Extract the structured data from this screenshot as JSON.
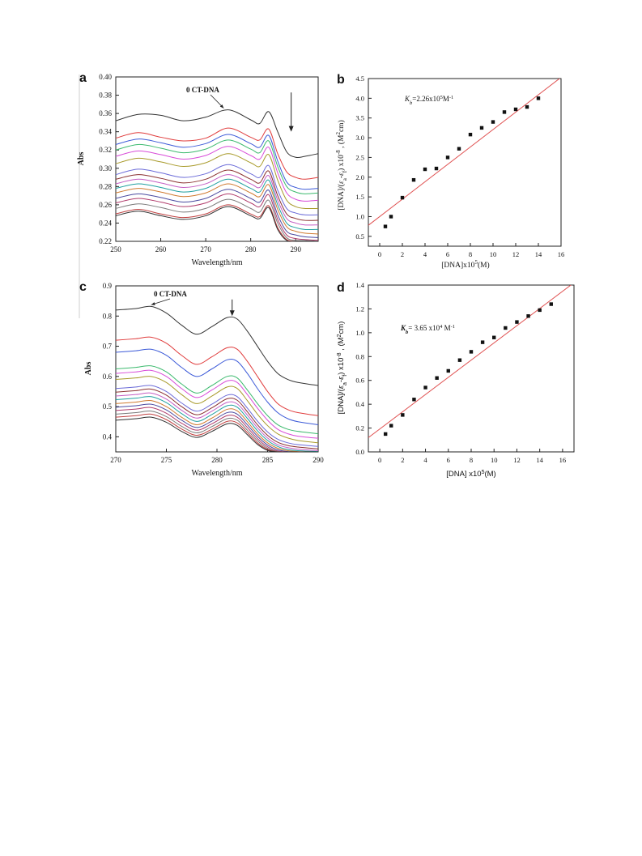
{
  "chart_data": [
    {
      "panel": "a",
      "type": "line",
      "xlabel": "Wavelength/nm",
      "ylabel": "Abs",
      "xlim": [
        250,
        295
      ],
      "ylim": [
        0.22,
        0.4
      ],
      "xticks": [
        250,
        260,
        270,
        280,
        290
      ],
      "yticks": [
        0.22,
        0.24,
        0.26,
        0.28,
        0.3,
        0.32,
        0.34,
        0.36,
        0.38,
        0.4
      ],
      "annotation": "0 CT-DNA",
      "annotation_point": [
        274,
        0.364
      ],
      "arrow_x": 289,
      "arrow_y": [
        0.383,
        0.34
      ],
      "grid": false,
      "x": [
        250,
        255,
        260,
        265,
        270,
        275,
        280,
        282,
        284,
        286,
        288,
        290,
        292,
        295
      ],
      "series": [
        {
          "color": "#333333",
          "values": [
            0.352,
            0.359,
            0.358,
            0.352,
            0.356,
            0.364,
            0.353,
            0.349,
            0.362,
            0.34,
            0.318,
            0.312,
            0.313,
            0.316
          ]
        },
        {
          "color": "#e03c3c",
          "values": [
            0.333,
            0.339,
            0.334,
            0.33,
            0.333,
            0.344,
            0.334,
            0.331,
            0.343,
            0.316,
            0.296,
            0.29,
            0.288,
            0.29
          ]
        },
        {
          "color": "#3c5ad8",
          "values": [
            0.326,
            0.332,
            0.328,
            0.323,
            0.327,
            0.337,
            0.327,
            0.323,
            0.336,
            0.308,
            0.285,
            0.279,
            0.277,
            0.278
          ]
        },
        {
          "color": "#3cba6e",
          "values": [
            0.32,
            0.326,
            0.322,
            0.317,
            0.321,
            0.331,
            0.321,
            0.317,
            0.33,
            0.302,
            0.28,
            0.274,
            0.272,
            0.273
          ]
        },
        {
          "color": "#d84bd8",
          "values": [
            0.313,
            0.319,
            0.315,
            0.31,
            0.314,
            0.324,
            0.314,
            0.31,
            0.323,
            0.295,
            0.273,
            0.266,
            0.264,
            0.265
          ]
        },
        {
          "color": "#a89a2a",
          "values": [
            0.305,
            0.311,
            0.307,
            0.302,
            0.306,
            0.316,
            0.306,
            0.302,
            0.315,
            0.287,
            0.265,
            0.258,
            0.256,
            0.256
          ]
        },
        {
          "color": "#6b6bd8",
          "values": [
            0.293,
            0.299,
            0.295,
            0.29,
            0.294,
            0.304,
            0.294,
            0.29,
            0.303,
            0.276,
            0.256,
            0.251,
            0.249,
            0.249
          ]
        },
        {
          "color": "#8a3030",
          "values": [
            0.288,
            0.293,
            0.289,
            0.284,
            0.288,
            0.298,
            0.288,
            0.284,
            0.297,
            0.27,
            0.25,
            0.245,
            0.243,
            0.243
          ]
        },
        {
          "color": "#c45ec4",
          "values": [
            0.283,
            0.288,
            0.284,
            0.279,
            0.283,
            0.293,
            0.283,
            0.279,
            0.292,
            0.265,
            0.245,
            0.24,
            0.238,
            0.238
          ]
        },
        {
          "color": "#20a0a0",
          "values": [
            0.278,
            0.283,
            0.279,
            0.274,
            0.278,
            0.288,
            0.278,
            0.274,
            0.287,
            0.26,
            0.24,
            0.235,
            0.233,
            0.233
          ]
        },
        {
          "color": "#d07a30",
          "values": [
            0.273,
            0.278,
            0.274,
            0.269,
            0.273,
            0.283,
            0.273,
            0.269,
            0.282,
            0.255,
            0.236,
            0.231,
            0.229,
            0.228
          ]
        },
        {
          "color": "#4a4aa0",
          "values": [
            0.267,
            0.272,
            0.268,
            0.263,
            0.267,
            0.277,
            0.267,
            0.263,
            0.276,
            0.249,
            0.231,
            0.227,
            0.225,
            0.224
          ]
        },
        {
          "color": "#b03a6a",
          "values": [
            0.262,
            0.267,
            0.263,
            0.258,
            0.262,
            0.272,
            0.262,
            0.258,
            0.271,
            0.244,
            0.227,
            0.223,
            0.222,
            0.221
          ]
        },
        {
          "color": "#7a7a7a",
          "values": [
            0.256,
            0.261,
            0.257,
            0.252,
            0.256,
            0.266,
            0.256,
            0.252,
            0.265,
            0.24,
            0.224,
            0.221,
            0.221,
            0.22
          ]
        },
        {
          "color": "#c04040",
          "values": [
            0.25,
            0.255,
            0.25,
            0.246,
            0.25,
            0.26,
            0.25,
            0.247,
            0.259,
            0.235,
            0.222,
            0.22,
            0.22,
            0.22
          ]
        },
        {
          "color": "#303030",
          "values": [
            0.248,
            0.253,
            0.248,
            0.244,
            0.248,
            0.258,
            0.248,
            0.245,
            0.257,
            0.233,
            0.221,
            0.22,
            0.22,
            0.22
          ]
        }
      ]
    },
    {
      "panel": "b",
      "type": "scatter",
      "xlabel": "[DNA]x10⁵(M)",
      "ylabel": "[DNA]/(εa-εf) x10⁻⁸ , (M²cm)",
      "xlim": [
        -1,
        16
      ],
      "ylim": [
        0.25,
        4.5
      ],
      "xticks": [
        0,
        2,
        4,
        6,
        8,
        10,
        12,
        14,
        16
      ],
      "yticks": [
        0.5,
        1.0,
        1.5,
        2.0,
        2.5,
        3.0,
        3.5,
        4.0,
        4.5
      ],
      "annotation": "Kb=2.26x10⁵M⁻¹",
      "grid": false,
      "points_x": [
        0.5,
        1,
        2,
        3,
        4,
        5,
        6,
        7,
        8,
        9,
        10,
        11,
        12,
        13,
        14
      ],
      "points_y": [
        0.75,
        1.0,
        1.48,
        1.93,
        2.2,
        2.22,
        2.5,
        2.72,
        3.08,
        3.25,
        3.4,
        3.65,
        3.72,
        3.78,
        4.0
      ],
      "fit_x": [
        -1,
        16
      ],
      "fit_y": [
        0.78,
        4.53
      ]
    },
    {
      "panel": "c",
      "type": "line",
      "xlabel": "Wavelength/nm",
      "ylabel": "Abs",
      "xlim": [
        270,
        290
      ],
      "ylim": [
        0.35,
        0.9
      ],
      "xticks": [
        270,
        275,
        280,
        285,
        290
      ],
      "yticks": [
        0.4,
        0.5,
        0.6,
        0.7,
        0.8,
        0.9
      ],
      "annotation": "0 CT-DNA",
      "annotation_point": [
        273.5,
        0.832
      ],
      "arrow_x": 281.5,
      "arrow_y": [
        0.855,
        0.8
      ],
      "grid": false,
      "x": [
        270,
        272,
        273.5,
        275,
        276.5,
        278,
        279.5,
        281,
        282,
        283,
        284,
        285,
        286,
        287,
        288,
        290
      ],
      "series": [
        {
          "color": "#333333",
          "values": [
            0.82,
            0.825,
            0.832,
            0.81,
            0.77,
            0.74,
            0.765,
            0.795,
            0.79,
            0.75,
            0.7,
            0.65,
            0.61,
            0.59,
            0.58,
            0.57
          ]
        },
        {
          "color": "#e03c3c",
          "values": [
            0.72,
            0.725,
            0.73,
            0.71,
            0.67,
            0.64,
            0.665,
            0.695,
            0.69,
            0.65,
            0.6,
            0.55,
            0.51,
            0.49,
            0.48,
            0.47
          ]
        },
        {
          "color": "#3c5ad8",
          "values": [
            0.68,
            0.685,
            0.69,
            0.67,
            0.63,
            0.6,
            0.625,
            0.655,
            0.65,
            0.61,
            0.56,
            0.515,
            0.48,
            0.46,
            0.45,
            0.44
          ]
        },
        {
          "color": "#3cba6e",
          "values": [
            0.625,
            0.63,
            0.635,
            0.615,
            0.575,
            0.545,
            0.57,
            0.6,
            0.595,
            0.555,
            0.51,
            0.47,
            0.44,
            0.425,
            0.418,
            0.41
          ]
        },
        {
          "color": "#d84bd8",
          "values": [
            0.61,
            0.615,
            0.62,
            0.6,
            0.56,
            0.53,
            0.555,
            0.585,
            0.58,
            0.54,
            0.495,
            0.455,
            0.425,
            0.41,
            0.402,
            0.395
          ]
        },
        {
          "color": "#a89a2a",
          "values": [
            0.59,
            0.595,
            0.6,
            0.58,
            0.54,
            0.51,
            0.535,
            0.565,
            0.56,
            0.52,
            0.475,
            0.437,
            0.41,
            0.396,
            0.388,
            0.38
          ]
        },
        {
          "color": "#6b6bd8",
          "values": [
            0.56,
            0.565,
            0.57,
            0.55,
            0.512,
            0.485,
            0.508,
            0.538,
            0.533,
            0.495,
            0.452,
            0.416,
            0.392,
            0.38,
            0.374,
            0.368
          ]
        },
        {
          "color": "#8a3030",
          "values": [
            0.548,
            0.553,
            0.558,
            0.538,
            0.5,
            0.473,
            0.496,
            0.526,
            0.521,
            0.483,
            0.44,
            0.405,
            0.382,
            0.371,
            0.366,
            0.36
          ]
        },
        {
          "color": "#c45ec4",
          "values": [
            0.535,
            0.54,
            0.545,
            0.525,
            0.488,
            0.462,
            0.485,
            0.514,
            0.509,
            0.472,
            0.43,
            0.396,
            0.374,
            0.364,
            0.359,
            0.354
          ]
        },
        {
          "color": "#20a0a0",
          "values": [
            0.523,
            0.528,
            0.533,
            0.513,
            0.477,
            0.451,
            0.474,
            0.503,
            0.498,
            0.461,
            0.42,
            0.388,
            0.368,
            0.358,
            0.354,
            0.351
          ]
        },
        {
          "color": "#d07a30",
          "values": [
            0.51,
            0.515,
            0.52,
            0.5,
            0.465,
            0.44,
            0.462,
            0.491,
            0.486,
            0.45,
            0.41,
            0.38,
            0.362,
            0.354,
            0.351,
            0.35
          ]
        },
        {
          "color": "#4a4aa0",
          "values": [
            0.498,
            0.503,
            0.508,
            0.489,
            0.455,
            0.431,
            0.452,
            0.48,
            0.475,
            0.44,
            0.402,
            0.373,
            0.357,
            0.351,
            0.35,
            0.35
          ]
        },
        {
          "color": "#b03a6a",
          "values": [
            0.487,
            0.492,
            0.497,
            0.478,
            0.445,
            0.422,
            0.443,
            0.47,
            0.465,
            0.431,
            0.394,
            0.367,
            0.353,
            0.35,
            0.35,
            0.35
          ]
        },
        {
          "color": "#7a7a7a",
          "values": [
            0.475,
            0.48,
            0.485,
            0.467,
            0.435,
            0.413,
            0.434,
            0.46,
            0.455,
            0.422,
            0.387,
            0.362,
            0.351,
            0.35,
            0.35,
            0.35
          ]
        },
        {
          "color": "#c04040",
          "values": [
            0.465,
            0.47,
            0.475,
            0.457,
            0.426,
            0.405,
            0.425,
            0.451,
            0.446,
            0.414,
            0.38,
            0.358,
            0.35,
            0.35,
            0.35,
            0.35
          ]
        },
        {
          "color": "#303030",
          "values": [
            0.455,
            0.46,
            0.465,
            0.448,
            0.418,
            0.398,
            0.418,
            0.443,
            0.438,
            0.407,
            0.375,
            0.355,
            0.35,
            0.35,
            0.35,
            0.35
          ]
        }
      ]
    },
    {
      "panel": "d",
      "type": "scatter",
      "xlabel": "[DNA] x10⁵(M)",
      "ylabel": "[DNA]/(εa-εf) x10⁻⁸ , (M²cm)",
      "xlim": [
        -1,
        17
      ],
      "ylim": [
        0.0,
        1.4
      ],
      "xticks": [
        0,
        2,
        4,
        6,
        8,
        10,
        12,
        14,
        16
      ],
      "yticks": [
        0.0,
        0.2,
        0.4,
        0.6,
        0.8,
        1.0,
        1.2,
        1.4
      ],
      "annotation": "Kb= 3.65 x10⁴ M⁻¹",
      "grid": false,
      "points_x": [
        0.5,
        1,
        2,
        3,
        4,
        5,
        6,
        7,
        8,
        9,
        10,
        11,
        12,
        13,
        14,
        15
      ],
      "points_y": [
        0.15,
        0.22,
        0.31,
        0.44,
        0.54,
        0.62,
        0.68,
        0.77,
        0.84,
        0.92,
        0.96,
        1.04,
        1.09,
        1.14,
        1.19,
        1.24
      ],
      "fit_x": [
        -1,
        17
      ],
      "fit_y": [
        0.12,
        1.42
      ]
    }
  ]
}
